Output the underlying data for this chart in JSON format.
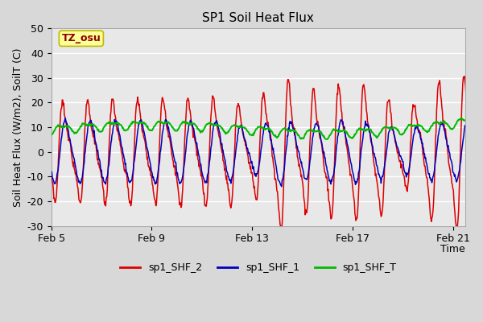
{
  "title": "SP1 Soil Heat Flux",
  "xlabel": "Time",
  "ylabel": "Soil Heat Flux (W/m2), SoilT (C)",
  "ylim": [
    -30,
    50
  ],
  "xlim": [
    0,
    16.5
  ],
  "xtick_positions": [
    0,
    4,
    8,
    12,
    16
  ],
  "xtick_labels": [
    "Feb 5",
    "Feb 9",
    "Feb 13",
    "Feb 17",
    "Feb 21"
  ],
  "ytick_positions": [
    -30,
    -20,
    -10,
    0,
    10,
    20,
    30,
    40,
    50
  ],
  "fig_bg_color": "#d8d8d8",
  "plot_bg_color": "#e8e8e8",
  "grid_color": "white",
  "legend_items": [
    "sp1_SHF_2",
    "sp1_SHF_1",
    "sp1_SHF_T"
  ],
  "legend_colors": [
    "#dd0000",
    "#0000bb",
    "#00bb00"
  ],
  "tz_label": "TZ_osu",
  "tz_box_facecolor": "#ffff99",
  "tz_box_edgecolor": "#bbbb00",
  "tz_text_color": "#880000",
  "title_fontsize": 11,
  "axis_label_fontsize": 9,
  "tick_fontsize": 9,
  "legend_fontsize": 9
}
